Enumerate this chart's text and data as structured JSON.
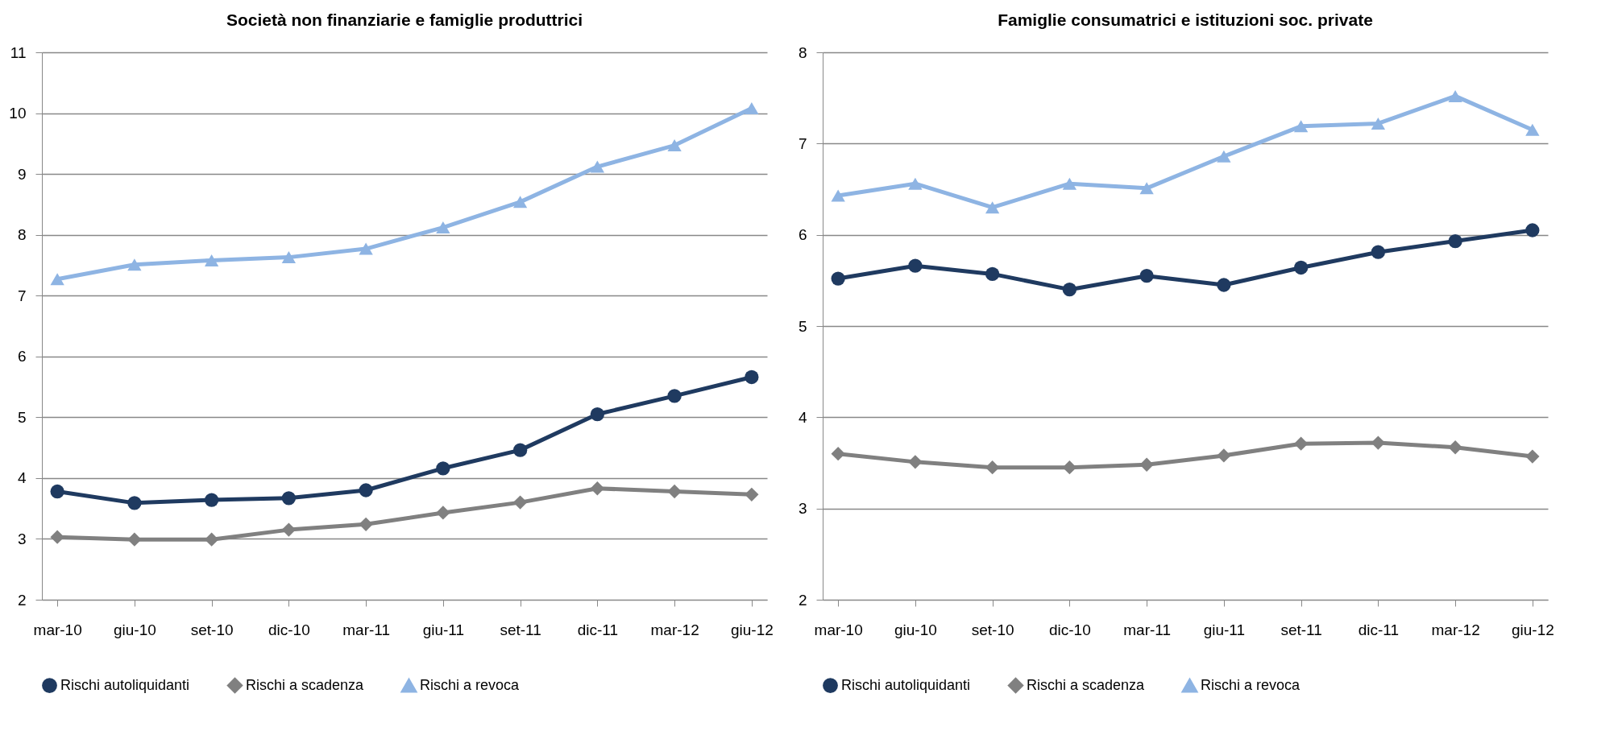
{
  "chart_data": [
    {
      "type": "line",
      "title": "Società non finanziarie e famiglie produttrici",
      "categories": [
        "mar-10",
        "giu-10",
        "set-10",
        "dic-10",
        "mar-11",
        "giu-11",
        "set-11",
        "dic-11",
        "mar-12",
        "giu-12"
      ],
      "ylim": [
        2,
        11
      ],
      "yticks": [
        2,
        3,
        4,
        5,
        6,
        7,
        8,
        9,
        10,
        11
      ],
      "grid": "y",
      "legend": "bottom",
      "series": [
        {
          "name": "Rischi autoliquidanti",
          "color": "#1f3a60",
          "marker": "circle",
          "values": [
            3.78,
            3.59,
            3.64,
            3.67,
            3.8,
            4.16,
            4.46,
            5.05,
            5.35,
            5.66
          ]
        },
        {
          "name": "Rischi a scadenza",
          "color": "#808080",
          "marker": "diamond",
          "values": [
            3.03,
            2.99,
            2.99,
            3.15,
            3.24,
            3.43,
            3.6,
            3.83,
            3.78,
            3.73
          ]
        },
        {
          "name": "Rischi a revoca",
          "color": "#8eb4e3",
          "marker": "triangle",
          "values": [
            7.27,
            7.51,
            7.58,
            7.63,
            7.77,
            8.12,
            8.54,
            9.12,
            9.47,
            10.08
          ]
        }
      ]
    },
    {
      "type": "line",
      "title": "Famiglie consumatrici e istituzioni soc. private",
      "categories": [
        "mar-10",
        "giu-10",
        "set-10",
        "dic-10",
        "mar-11",
        "giu-11",
        "set-11",
        "dic-11",
        "mar-12",
        "giu-12"
      ],
      "ylim": [
        2,
        8
      ],
      "yticks": [
        2,
        3,
        4,
        5,
        6,
        7,
        8
      ],
      "grid": "y",
      "legend": "bottom",
      "series": [
        {
          "name": "Rischi autoliquidanti",
          "color": "#1f3a60",
          "marker": "circle",
          "values": [
            5.52,
            5.66,
            5.57,
            5.4,
            5.55,
            5.45,
            5.64,
            5.81,
            5.93,
            6.05
          ]
        },
        {
          "name": "Rischi a scadenza",
          "color": "#808080",
          "marker": "diamond",
          "values": [
            3.6,
            3.51,
            3.45,
            3.45,
            3.48,
            3.58,
            3.71,
            3.72,
            3.67,
            3.57
          ]
        },
        {
          "name": "Rischi a revoca",
          "color": "#8eb4e3",
          "marker": "triangle",
          "values": [
            6.43,
            6.56,
            6.3,
            6.56,
            6.51,
            6.86,
            7.19,
            7.22,
            7.52,
            7.15
          ]
        }
      ]
    }
  ]
}
